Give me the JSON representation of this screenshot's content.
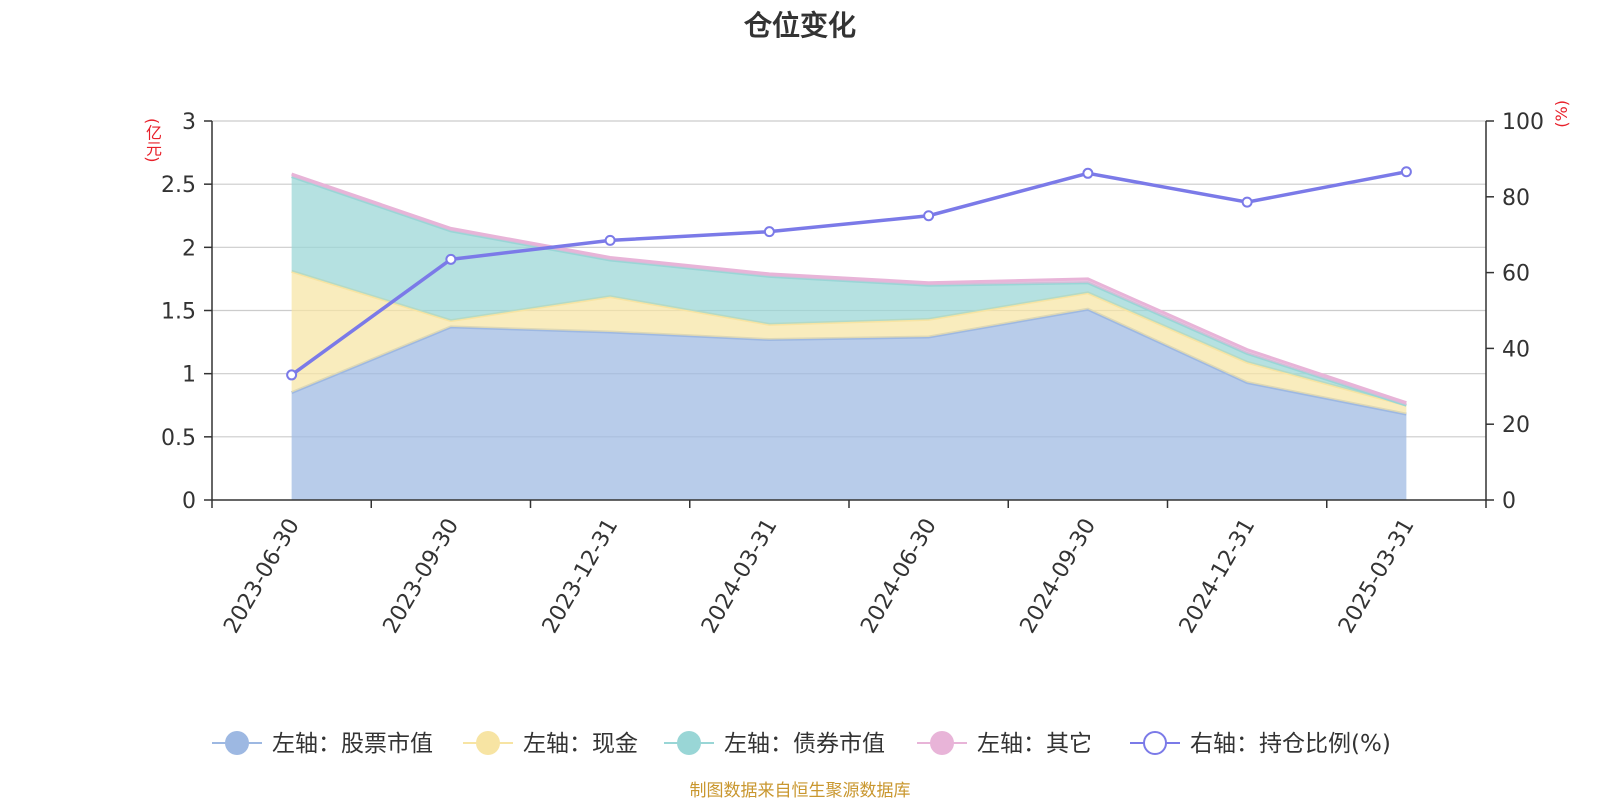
{
  "chart_data": {
    "type": "area",
    "title": "仓位变化",
    "categories": [
      "2023-06-30",
      "2023-09-30",
      "2023-12-31",
      "2024-03-31",
      "2024-06-30",
      "2024-09-30",
      "2024-12-31",
      "2025-03-31"
    ],
    "left_axis": {
      "unit": "(亿元)",
      "ylim": [
        0,
        3
      ],
      "ticks": [
        "0",
        "0.5",
        "1",
        "1.5",
        "2",
        "2.5",
        "3"
      ],
      "tick_values": [
        0,
        0.5,
        1,
        1.5,
        2,
        2.5,
        3
      ]
    },
    "right_axis": {
      "unit": "(%)",
      "ylim": [
        0,
        100
      ],
      "ticks": [
        "0",
        "20",
        "40",
        "60",
        "80",
        "100"
      ],
      "tick_values": [
        0,
        20,
        40,
        60,
        80,
        100
      ]
    },
    "stacked_series": [
      {
        "name": "左轴：股票市值",
        "color": "#9db8e2",
        "values": [
          0.85,
          1.37,
          1.33,
          1.27,
          1.29,
          1.51,
          0.93,
          0.68
        ]
      },
      {
        "name": "左轴：现金",
        "color": "#f7e4a3",
        "values": [
          0.96,
          0.05,
          0.28,
          0.12,
          0.14,
          0.13,
          0.16,
          0.07
        ]
      },
      {
        "name": "左轴：债券市值",
        "color": "#99d6d6",
        "values": [
          0.75,
          0.71,
          0.29,
          0.38,
          0.27,
          0.08,
          0.07,
          0.0
        ]
      },
      {
        "name": "左轴：其它",
        "color": "#e8b4d8",
        "values": [
          0.02,
          0.02,
          0.02,
          0.02,
          0.02,
          0.03,
          0.03,
          0.02
        ]
      }
    ],
    "line_series": {
      "name": "右轴：持仓比例(%)",
      "color": "#7b7ae8",
      "values": [
        33.0,
        63.5,
        68.5,
        70.8,
        75.0,
        86.2,
        78.6,
        86.6
      ]
    },
    "grid": true,
    "legend_position": "bottom"
  },
  "legend": [
    {
      "label": "左轴：股票市值",
      "color": "#9db8e2",
      "style": "filled"
    },
    {
      "label": "左轴：现金",
      "color": "#f7e4a3",
      "style": "filled"
    },
    {
      "label": "左轴：债券市值",
      "color": "#99d6d6",
      "style": "filled"
    },
    {
      "label": "左轴：其它",
      "color": "#e8b4d8",
      "style": "filled"
    },
    {
      "label": "右轴：持仓比例(%)",
      "color": "#7b7ae8",
      "style": "hollow"
    }
  ],
  "source": "制图数据来自恒生聚源数据库",
  "colors": {
    "title": "#333333",
    "axis_text": "#333333",
    "unit_text": "#e8202a",
    "source_text": "#c9972f",
    "grid": "#cccccc",
    "axis": "#333333"
  }
}
